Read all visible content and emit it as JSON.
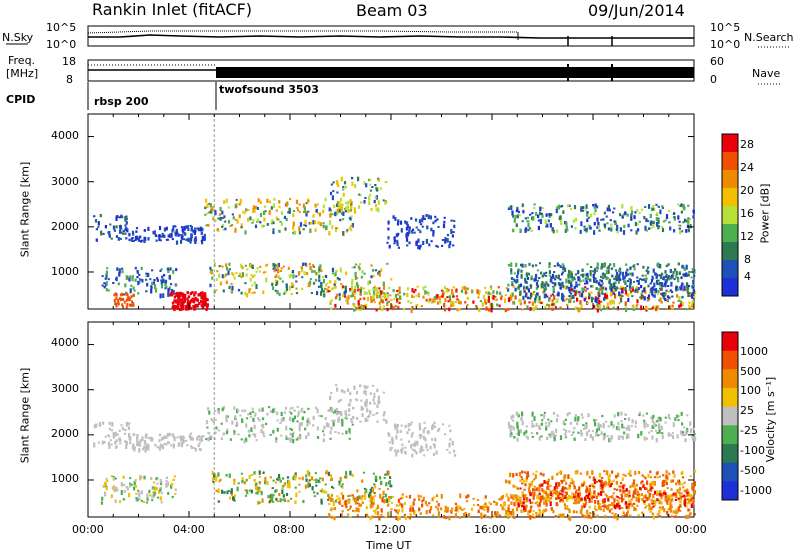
{
  "header": {
    "station": "Rankin Inlet (fitACF)",
    "beam": "Beam 03",
    "date": "09/Jun/2014"
  },
  "top_panel": {
    "left_label": "N.Sky",
    "right_label": "N.Search",
    "left_ticks": [
      "10^5",
      "10^0"
    ],
    "right_ticks": [
      "10^5",
      "10^0"
    ]
  },
  "freq_panel": {
    "left_label_1": "Freq.",
    "left_label_2": "[MHz]",
    "right_label": "Nave",
    "left_ticks": [
      "18",
      "8"
    ],
    "right_ticks": [
      "60",
      "0"
    ]
  },
  "cpid": {
    "label": "CPID",
    "segments": [
      {
        "name": "rbsp 200",
        "start": "00:00"
      },
      {
        "name": "twofsound 3503",
        "start": "05:00"
      }
    ]
  },
  "chart_data": [
    {
      "type": "heatmap",
      "ylabel": "Slant Range [km]",
      "xlabel": "",
      "y_ticks": [
        "4000",
        "3000",
        "2000",
        "1000"
      ],
      "ylim": [
        180,
        4500
      ],
      "colorbar": {
        "label": "Power [dB]",
        "ticks": [
          "28",
          "24",
          "20",
          "16",
          "12",
          "8",
          "4"
        ]
      },
      "colors": [
        "#1f2fd6",
        "#1f4fb8",
        "#2d7a52",
        "#4caf50",
        "#b7e03a",
        "#f3c000",
        "#f08a00",
        "#f05000",
        "#e8000b"
      ]
    },
    {
      "type": "heatmap",
      "ylabel": "Slant Range [km]",
      "xlabel": "Time UT",
      "y_ticks": [
        "4000",
        "3000",
        "2000",
        "1000"
      ],
      "ylim": [
        180,
        4500
      ],
      "x_ticks": [
        "00:00",
        "04:00",
        "08:00",
        "12:00",
        "16:00",
        "20:00",
        "00:00"
      ],
      "colorbar": {
        "label": "Velocity [m s⁻¹]",
        "ticks": [
          "1000",
          "500",
          "100",
          "25",
          "-25",
          "-100",
          "-500",
          "-1000"
        ]
      },
      "colors": [
        "#1f2fd6",
        "#1f4fb8",
        "#2d7a52",
        "#4caf50",
        "#bfbfbf",
        "#f3c000",
        "#f08a00",
        "#f05000",
        "#e8000b"
      ]
    }
  ]
}
